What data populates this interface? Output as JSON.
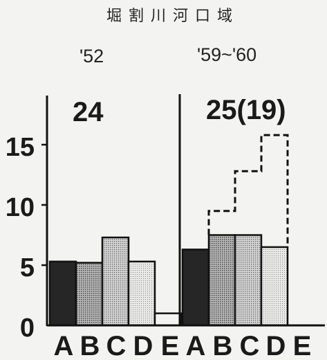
{
  "chart_data": {
    "type": "bar",
    "title": "堀割川河口域",
    "categories": [
      "A",
      "B",
      "C",
      "D",
      "E"
    ],
    "yticks": [
      "0",
      "5",
      "10",
      "15"
    ],
    "ylim": [
      0,
      18
    ],
    "panels": [
      {
        "period": "'52",
        "count": "24",
        "values": [
          5.3,
          5.2,
          7.3,
          5.3,
          1.0
        ]
      },
      {
        "period": "'59~'60",
        "count": "25(19)",
        "values": [
          6.3,
          7.5,
          7.5,
          6.5,
          0
        ],
        "dashed_values": [
          null,
          9.5,
          12.8,
          15.8,
          0
        ]
      }
    ],
    "fills": [
      "#2a2a2a",
      "#8e8e8e",
      "#b4b4b4",
      "#d4d4d4",
      "#f3f3f1"
    ]
  }
}
